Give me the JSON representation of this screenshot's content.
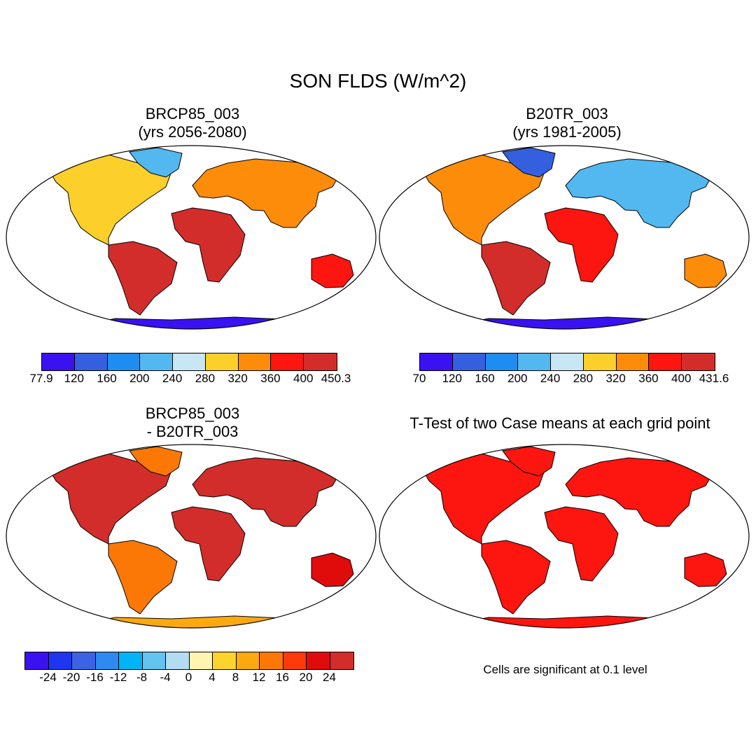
{
  "title": "SON FLDS (W/m^2)",
  "panels": [
    {
      "title_line1": "BRCP85_003",
      "title_line2": "(yrs 2056-2080)"
    },
    {
      "title_line1": "B20TR_003",
      "title_line2": "(yrs 1981-2005)"
    },
    {
      "title_line1": "BRCP85_003",
      "title_line2": "- B20TR_003"
    },
    {
      "title_line1": "T-Test of two Case means at each grid point",
      "title_line2": ""
    }
  ],
  "colorbars": [
    {
      "colors": [
        "#3a12f2",
        "#3460e0",
        "#1f8cf0",
        "#52b8ef",
        "#c9e6f5",
        "#fdcf2a",
        "#fd8c0a",
        "#fd1510",
        "#d22d2a"
      ],
      "labels": [
        "77.9",
        "120",
        "160",
        "200",
        "240",
        "280",
        "320",
        "360",
        "400",
        "450.3"
      ]
    },
    {
      "colors": [
        "#3a12f2",
        "#3460e0",
        "#1f8cf0",
        "#52b8ef",
        "#c9e6f5",
        "#fdcf2a",
        "#fd8c0a",
        "#fd1510",
        "#d22d2a"
      ],
      "labels": [
        "70",
        "120",
        "160",
        "200",
        "240",
        "280",
        "320",
        "360",
        "400",
        "431.6"
      ]
    },
    {
      "colors": [
        "#3a12f2",
        "#1f35ef",
        "#3b63e4",
        "#2e8af0",
        "#00b4f7",
        "#64c4ef",
        "#b3dcf3",
        "#fff4b0",
        "#fdd42c",
        "#fca80f",
        "#fc7806",
        "#fc3a0c",
        "#e00b0b",
        "#d22d2a"
      ],
      "labels": [
        "-24",
        "-20",
        "-16",
        "-12",
        "-8",
        "-4",
        "0",
        "4",
        "8",
        "12",
        "16",
        "20",
        "24"
      ]
    }
  ],
  "note": "Cells are significant at 0.1 level"
}
